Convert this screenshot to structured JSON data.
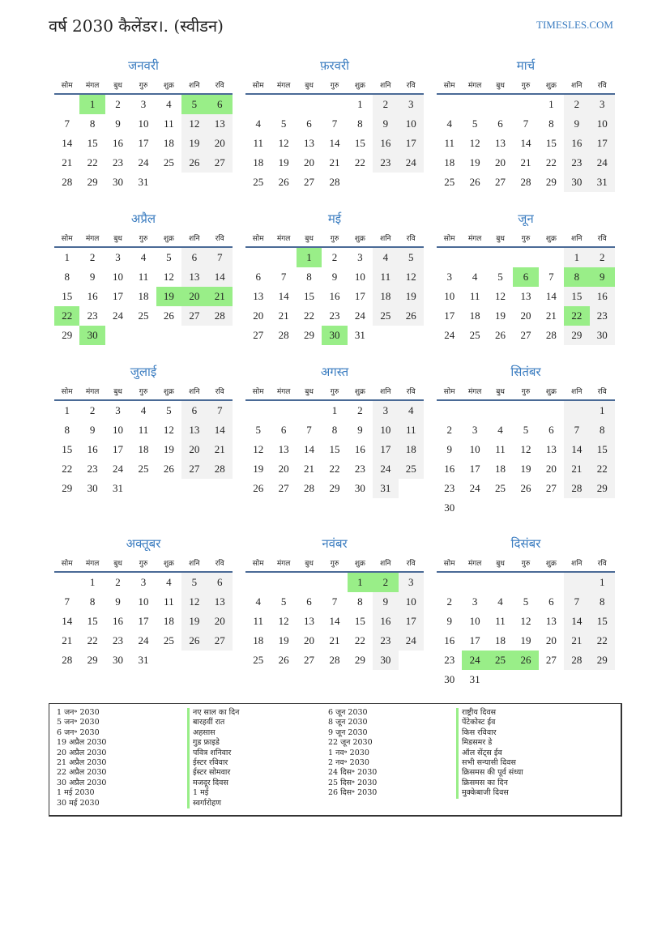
{
  "header": {
    "title": "वर्ष 2030 कैलेंडर।. (स्वीडन)",
    "brand": "TIMESLES.COM"
  },
  "year": 2030,
  "colors": {
    "accent": "#3a7cc0",
    "holiday": "#99ee88",
    "weekend": "#f2f2f2"
  },
  "weekdays": [
    "सोम",
    "मंगल",
    "बुध",
    "गुरु",
    "शुक्र",
    "शनि",
    "रवि"
  ],
  "months": [
    {
      "name": "जनवरी",
      "holidays": [
        1,
        5,
        6
      ]
    },
    {
      "name": "फ़रवरी",
      "holidays": []
    },
    {
      "name": "मार्च",
      "holidays": []
    },
    {
      "name": "अप्रैल",
      "holidays": [
        19,
        20,
        21,
        22,
        30
      ]
    },
    {
      "name": "मई",
      "holidays": [
        1,
        30
      ]
    },
    {
      "name": "जून",
      "holidays": [
        6,
        8,
        9,
        22
      ]
    },
    {
      "name": "जुलाई",
      "holidays": []
    },
    {
      "name": "अगस्त",
      "holidays": []
    },
    {
      "name": "सितंबर",
      "holidays": []
    },
    {
      "name": "अक्तूबर",
      "holidays": []
    },
    {
      "name": "नवंबर",
      "holidays": [
        1,
        2
      ]
    },
    {
      "name": "दिसंबर",
      "holidays": [
        24,
        25,
        26
      ]
    }
  ],
  "holiday_list": [
    {
      "date": "1 जन॰ 2030",
      "name": "नए साल का दिन"
    },
    {
      "date": "5 जन॰ 2030",
      "name": "बारहवीं रात"
    },
    {
      "date": "6 जन॰ 2030",
      "name": "अहसास"
    },
    {
      "date": "19 अप्रैल 2030",
      "name": "गुड फ्राइडे"
    },
    {
      "date": "20 अप्रैल 2030",
      "name": "पवित्र शनिवार"
    },
    {
      "date": "21 अप्रैल 2030",
      "name": "ईस्टर रविवार"
    },
    {
      "date": "22 अप्रैल 2030",
      "name": "ईस्टर सोमवार"
    },
    {
      "date": "30 अप्रैल 2030",
      "name": "मजदूर दिवस"
    },
    {
      "date": "1 मई 2030",
      "name": "1 मई"
    },
    {
      "date": "30 मई 2030",
      "name": "स्वर्गारोहण"
    },
    {
      "date": "6 जून 2030",
      "name": "राष्ट्रीय दिवस"
    },
    {
      "date": "8 जून 2030",
      "name": "पेंटेकोस्ट ईव"
    },
    {
      "date": "9 जून 2030",
      "name": "किस रविवार"
    },
    {
      "date": "22 जून 2030",
      "name": "मिडसमर डे"
    },
    {
      "date": "1 नव॰ 2030",
      "name": "ऑल सेंट्स ईव"
    },
    {
      "date": "2 नव॰ 2030",
      "name": "सभी सन्यासी दिवस"
    },
    {
      "date": "24 दिस॰ 2030",
      "name": "क्रिसमस की पूर्व संध्या"
    },
    {
      "date": "25 दिस॰ 2030",
      "name": "क्रिसमस का दिन"
    },
    {
      "date": "26 दिस॰ 2030",
      "name": "मुक्केबाजी दिवस"
    }
  ]
}
